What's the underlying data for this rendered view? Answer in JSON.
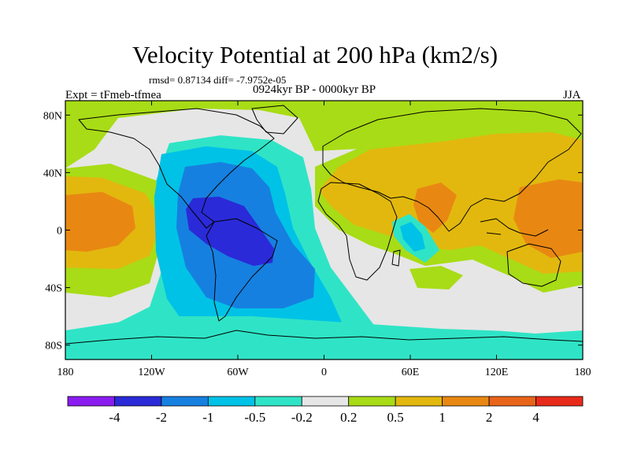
{
  "header": {
    "title": "Velocity Potential at 200 hPa (km2/s)",
    "stats": "rmsd= 0.87134 diff= -7.9752e-05",
    "experiment": "Expt = tFmeb-tfmea",
    "period": "0924kyr BP - 0000kyr BP",
    "season": "JJA"
  },
  "axes": {
    "x_ticks": [
      "180",
      "120W",
      "60W",
      "0",
      "60E",
      "120E",
      "180"
    ],
    "y_ticks": [
      "80N",
      "40N",
      "0",
      "40S",
      "80S"
    ]
  },
  "colorbar": {
    "colors": [
      "#8a1cf0",
      "#2a2ad8",
      "#1680e0",
      "#00c2e6",
      "#2fe4c6",
      "#e6e6e6",
      "#a8dc16",
      "#e2b80e",
      "#e88812",
      "#e8641a",
      "#e82a1a"
    ],
    "labels": [
      "-4",
      "-2",
      "-1",
      "-0.5",
      "-0.2",
      "0.2",
      "0.5",
      "1",
      "2",
      "4"
    ]
  }
}
